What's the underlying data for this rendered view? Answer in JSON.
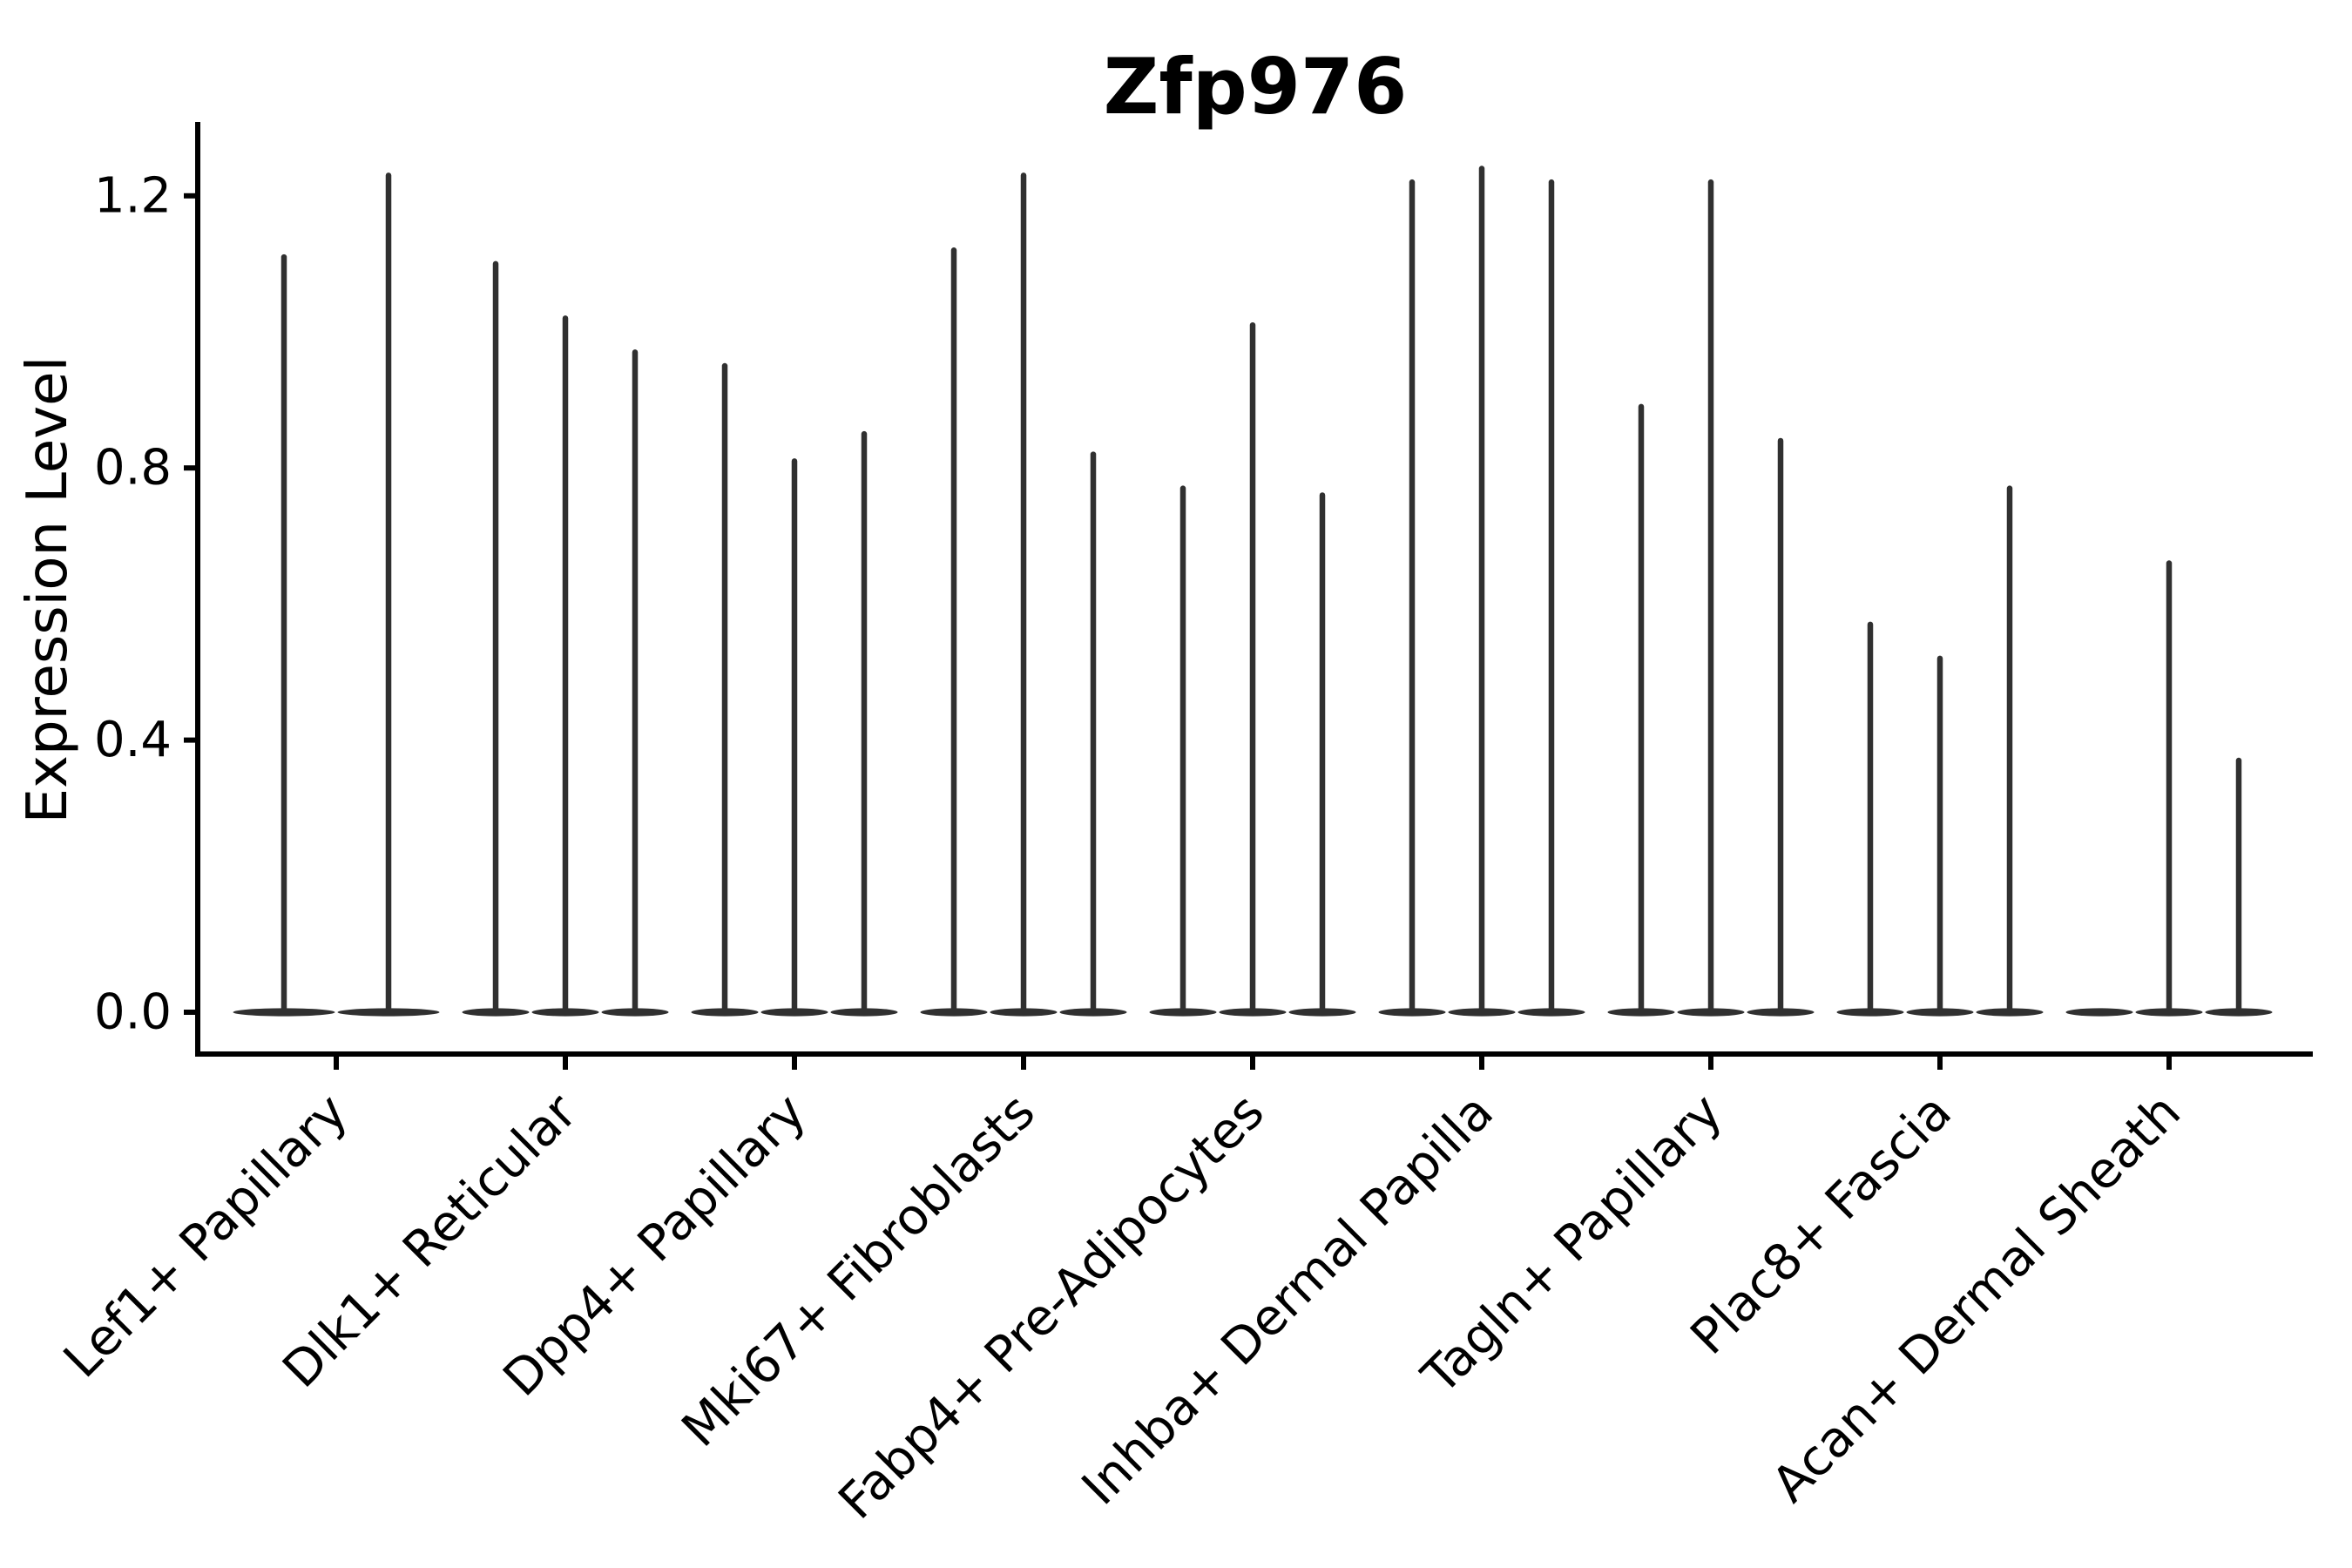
{
  "title": "Zfp976",
  "y_axis": {
    "label": "Expression Level",
    "tick_labels": [
      "0.0",
      "0.4",
      "0.8",
      "1.2"
    ]
  },
  "colors": {
    "axis_ink": "#000000",
    "violin_ink": "#303030"
  },
  "chart_data": {
    "type": "violin",
    "title": "Zfp976",
    "xlabel": "",
    "ylabel": "Expression Level",
    "ylim": [
      0,
      1.31
    ],
    "yticks": [
      0.0,
      0.4,
      0.8,
      1.2
    ],
    "grid": false,
    "legend_position": "none",
    "categories": [
      "Lef1+ Papillary",
      "Dlk1+ Reticular",
      "Dpp4+ Papillary",
      "Mki67+ Fibroblasts",
      "Fabp4+ Pre-Adipocytes",
      "Inhba+ Dermal Papilla",
      "Tagln+ Papillary",
      "Plac8+ Fascia",
      "Acan+ Dermal Sheath"
    ],
    "series": [
      {
        "category": "Lef1+ Papillary",
        "violin_maxima": [
          1.11,
          1.23
        ]
      },
      {
        "category": "Dlk1+ Reticular",
        "violin_maxima": [
          1.1,
          1.02,
          0.97
        ]
      },
      {
        "category": "Dpp4+ Papillary",
        "violin_maxima": [
          0.95,
          0.81,
          0.85
        ]
      },
      {
        "category": "Mki67+ Fibroblasts",
        "violin_maxima": [
          1.12,
          1.23,
          0.82
        ]
      },
      {
        "category": "Fabp4+ Pre-Adipocytes",
        "violin_maxima": [
          0.77,
          1.01,
          0.76
        ]
      },
      {
        "category": "Inhba+ Dermal Papilla",
        "violin_maxima": [
          1.22,
          1.24,
          1.22
        ]
      },
      {
        "category": "Tagln+ Papillary",
        "violin_maxima": [
          0.89,
          1.22,
          0.84
        ]
      },
      {
        "category": "Plac8+ Fascia",
        "violin_maxima": [
          0.57,
          0.52,
          0.77
        ]
      },
      {
        "category": "Acan+ Dermal Sheath",
        "violin_maxima": [
          0.0,
          0.66,
          0.37
        ]
      }
    ]
  }
}
